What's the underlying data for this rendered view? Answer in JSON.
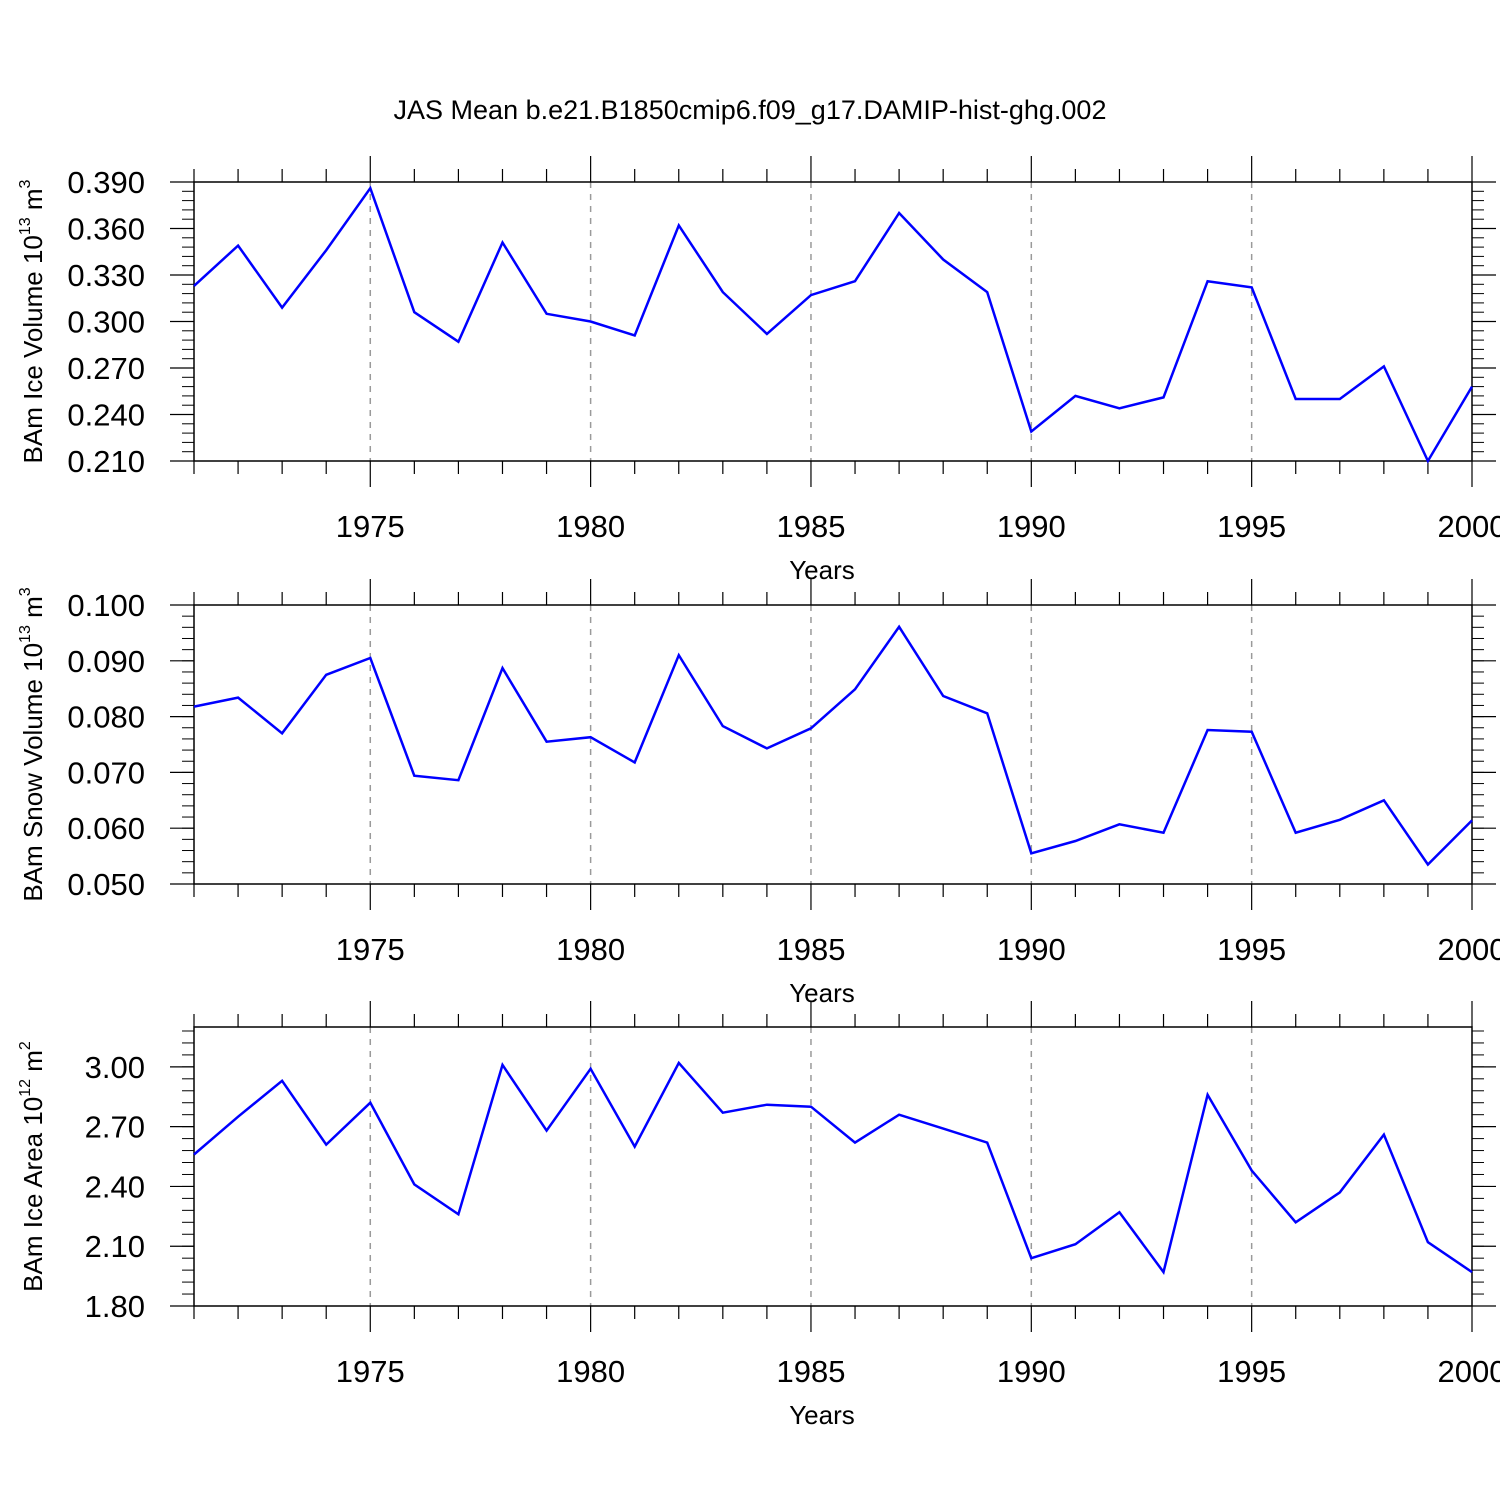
{
  "title": "JAS Mean b.e21.B1850cmip6.f09_g17.DAMIP-hist-ghg.002",
  "line_color": "#0000ff",
  "chart_data": [
    {
      "type": "line",
      "ylabel": {
        "text": "BAm Ice Volume 10",
        "exp": "13",
        "unit": " m",
        "unit_exp": "3"
      },
      "xlabel": "Years",
      "xlim": [
        1971,
        2000
      ],
      "ylim": [
        0.21,
        0.39
      ],
      "xticks": [
        1975,
        1980,
        1985,
        1990,
        1995,
        2000
      ],
      "yticks": [
        0.21,
        0.24,
        0.27,
        0.3,
        0.33,
        0.36,
        0.39
      ],
      "ytick_labels": [
        "0.210",
        "0.240",
        "0.270",
        "0.300",
        "0.330",
        "0.360",
        "0.390"
      ],
      "grid": "dashed vertical at major x ticks",
      "x": [
        1971,
        1972,
        1973,
        1974,
        1975,
        1976,
        1977,
        1978,
        1979,
        1980,
        1981,
        1982,
        1983,
        1984,
        1985,
        1986,
        1987,
        1988,
        1989,
        1990,
        1991,
        1992,
        1993,
        1994,
        1995,
        1996,
        1997,
        1998,
        1999,
        2000
      ],
      "values": [
        0.323,
        0.349,
        0.309,
        0.346,
        0.386,
        0.306,
        0.287,
        0.351,
        0.305,
        0.3,
        0.291,
        0.362,
        0.319,
        0.292,
        0.317,
        0.326,
        0.37,
        0.34,
        0.319,
        0.229,
        0.252,
        0.244,
        0.251,
        0.326,
        0.322,
        0.25,
        0.25,
        0.271,
        0.21,
        0.258
      ]
    },
    {
      "type": "line",
      "ylabel": {
        "text": "BAm Snow Volume 10",
        "exp": "13",
        "unit": " m",
        "unit_exp": "3"
      },
      "xlabel": "Years",
      "xlim": [
        1971,
        2000
      ],
      "ylim": [
        0.05,
        0.1
      ],
      "xticks": [
        1975,
        1980,
        1985,
        1990,
        1995,
        2000
      ],
      "yticks": [
        0.05,
        0.06,
        0.07,
        0.08,
        0.09,
        0.1
      ],
      "ytick_labels": [
        "0.050",
        "0.060",
        "0.070",
        "0.080",
        "0.090",
        "0.100"
      ],
      "grid": "dashed vertical at major x ticks",
      "x": [
        1971,
        1972,
        1973,
        1974,
        1975,
        1976,
        1977,
        1978,
        1979,
        1980,
        1981,
        1982,
        1983,
        1984,
        1985,
        1986,
        1987,
        1988,
        1989,
        1990,
        1991,
        1992,
        1993,
        1994,
        1995,
        1996,
        1997,
        1998,
        1999,
        2000
      ],
      "values": [
        0.0818,
        0.0834,
        0.077,
        0.0875,
        0.0905,
        0.0694,
        0.0686,
        0.0887,
        0.0755,
        0.0763,
        0.0718,
        0.091,
        0.0783,
        0.0743,
        0.0779,
        0.0849,
        0.0961,
        0.0837,
        0.0806,
        0.0555,
        0.0577,
        0.0607,
        0.0592,
        0.0776,
        0.0773,
        0.0592,
        0.0615,
        0.065,
        0.0535,
        0.0614
      ]
    },
    {
      "type": "line",
      "ylabel": {
        "text": "BAm Ice Area 10",
        "exp": "12",
        "unit": " m",
        "unit_exp": "2"
      },
      "xlabel": "Years",
      "xlim": [
        1971,
        2000
      ],
      "ylim": [
        1.8,
        3.2
      ],
      "xticks": [
        1975,
        1980,
        1985,
        1990,
        1995,
        2000
      ],
      "yticks": [
        1.8,
        2.1,
        2.4,
        2.7,
        3.0
      ],
      "ytick_labels": [
        "1.80",
        "2.10",
        "2.40",
        "2.70",
        "3.00"
      ],
      "grid": "dashed vertical at major x ticks",
      "x": [
        1971,
        1972,
        1973,
        1974,
        1975,
        1976,
        1977,
        1978,
        1979,
        1980,
        1981,
        1982,
        1983,
        1984,
        1985,
        1986,
        1987,
        1988,
        1989,
        1990,
        1991,
        1992,
        1993,
        1994,
        1995,
        1996,
        1997,
        1998,
        1999,
        2000
      ],
      "values": [
        2.56,
        2.75,
        2.93,
        2.61,
        2.82,
        2.41,
        2.26,
        3.01,
        2.68,
        2.99,
        2.6,
        3.02,
        2.77,
        2.81,
        2.8,
        2.62,
        2.76,
        2.69,
        2.62,
        2.04,
        2.11,
        2.27,
        1.97,
        2.86,
        2.48,
        2.22,
        2.37,
        2.66,
        2.12,
        1.97
      ]
    }
  ]
}
